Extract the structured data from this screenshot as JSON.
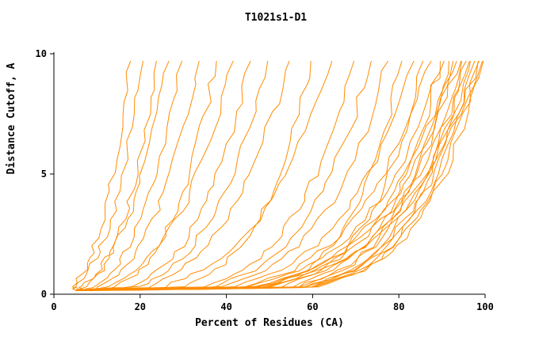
{
  "figure": {
    "background": "#ffffff",
    "text_color": "#000000"
  },
  "chart_data": {
    "type": "line",
    "title": "T1021s1-D1",
    "xlabel": "Percent of Residues (CA)",
    "ylabel": "Distance Cutoff, A",
    "xlim": [
      0,
      100
    ],
    "ylim": [
      0,
      10
    ],
    "x_ticks": [
      0,
      20,
      40,
      60,
      80,
      100
    ],
    "y_ticks": [
      0,
      5,
      10
    ],
    "grid": false,
    "legend_position": "none",
    "line_color": "#ff8c00",
    "axis_color": "#000000",
    "y_levels": [
      0.15,
      0.3,
      1,
      2,
      3.5,
      5,
      7.5,
      9.7
    ],
    "series": [
      [
        5,
        4.4,
        7.2,
        9.5,
        11.8,
        13.6,
        16.0,
        17.8
      ],
      [
        5,
        5.2,
        8.4,
        11.0,
        13.8,
        15.9,
        18.7,
        20.7
      ],
      [
        5,
        7.5,
        11.2,
        14.1,
        17.0,
        19.1,
        21.8,
        23.8
      ],
      [
        5,
        6.6,
        10.7,
        14.2,
        17.7,
        20.5,
        24.1,
        26.7
      ],
      [
        5,
        9.4,
        14.0,
        17.6,
        21.2,
        23.9,
        27.3,
        29.7
      ],
      [
        5,
        10.7,
        15.9,
        20.0,
        24.0,
        27.1,
        30.9,
        33.7
      ],
      [
        5,
        14.7,
        20.4,
        24.6,
        28.6,
        31.5,
        35.2,
        37.7
      ],
      [
        5,
        13.2,
        19.7,
        24.7,
        29.7,
        33.4,
        38.2,
        41.6
      ],
      [
        5,
        17.8,
        24.7,
        29.8,
        34.6,
        38.1,
        42.6,
        45.6
      ],
      [
        5,
        19.4,
        26.9,
        32.4,
        37.7,
        41.5,
        46.3,
        49.6
      ],
      [
        5,
        21.3,
        29.5,
        35.6,
        41.4,
        45.6,
        50.9,
        54.6
      ],
      [
        5,
        29.8,
        37.9,
        43.5,
        48.7,
        52.2,
        56.6,
        59.6
      ],
      [
        5,
        25.2,
        34.9,
        42.1,
        48.9,
        53.9,
        60.1,
        64.5
      ],
      [
        5,
        34.7,
        44.2,
        50.8,
        56.8,
        60.9,
        66.1,
        69.6
      ],
      [
        5,
        36.7,
        46.7,
        53.7,
        60.0,
        64.4,
        69.9,
        73.6
      ],
      [
        5,
        38.7,
        49.2,
        56.6,
        63.3,
        67.9,
        73.6,
        77.5
      ],
      [
        5,
        49.6,
        58.6,
        64.6,
        69.9,
        73.5,
        77.8,
        80.7
      ],
      [
        5,
        41.7,
        53.0,
        60.9,
        68.1,
        73.1,
        79.3,
        83.5
      ],
      [
        5,
        52.6,
        62.3,
        68.6,
        74.2,
        78.1,
        82.6,
        85.6
      ],
      [
        5,
        43.6,
        55.5,
        63.8,
        71.4,
        76.6,
        83.1,
        87.5
      ],
      [
        5,
        55.1,
        65.2,
        71.8,
        77.7,
        81.7,
        86.4,
        89.6
      ],
      [
        5,
        45.1,
        57.4,
        66.0,
        73.8,
        79.2,
        85.9,
        90.5
      ],
      [
        5,
        56.3,
        66.6,
        73.4,
        79.4,
        83.5,
        88.4,
        91.6
      ],
      [
        5,
        56.9,
        67.3,
        74.2,
        80.3,
        84.4,
        89.3,
        92.6
      ],
      [
        5,
        46.6,
        59.3,
        68.2,
        76.2,
        81.8,
        88.7,
        93.4
      ],
      [
        5,
        58.1,
        68.8,
        75.8,
        82.0,
        86.2,
        91.2,
        94.6
      ],
      [
        5,
        58.8,
        69.5,
        76.6,
        82.8,
        87.1,
        92.2,
        95.6
      ],
      [
        5,
        59.4,
        70.2,
        77.4,
        83.7,
        88.0,
        93.2,
        96.6
      ],
      [
        5,
        60.0,
        70.9,
        78.2,
        84.6,
        88.9,
        94.1,
        97.6
      ],
      [
        5,
        60.6,
        71.7,
        79.0,
        85.4,
        89.9,
        95.1,
        98.6
      ],
      [
        5,
        61.2,
        72.4,
        79.8,
        86.3,
        90.8,
        96.0,
        99.6
      ],
      [
        5,
        49.6,
        63.1,
        72.5,
        81.1,
        87.1,
        94.4,
        99.4
      ],
      [
        5,
        49.1,
        62.5,
        71.8,
        80.3,
        86.2,
        93.5,
        98.4
      ],
      [
        5,
        48.1,
        61.2,
        70.3,
        78.7,
        84.4,
        91.6,
        96.4
      ],
      [
        5,
        47.1,
        59.9,
        68.9,
        77.0,
        82.7,
        89.7,
        94.4
      ]
    ]
  }
}
